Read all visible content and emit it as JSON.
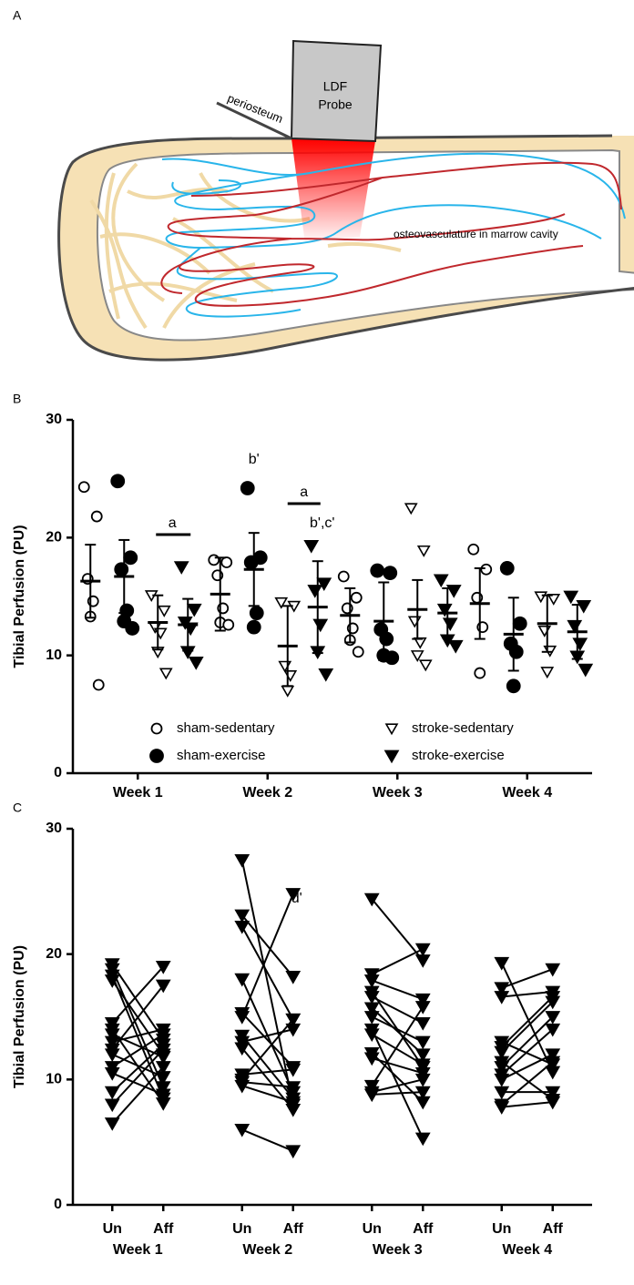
{
  "diagram": {
    "label": "A",
    "probe": [
      "LDF",
      "Probe"
    ],
    "periosteum": "periosteum",
    "caption": "osteovasculature in marrow cavity"
  },
  "chart_data": [
    {
      "label": "B",
      "type": "dot",
      "y_label": "Tibial Perfusion (PU)",
      "categories": [
        "Week 1",
        "Week 2",
        "Week 3",
        "Week 4"
      ],
      "ylim": [
        0,
        30
      ],
      "yticks": [
        0,
        10,
        20,
        30
      ],
      "legend_position": "bottom",
      "series": [
        {
          "name": "sham-sedentary",
          "marker": "circle-open",
          "color": "#000000",
          "values": [
            [
              24.3,
              21.8,
              16.5,
              14.6,
              13.3,
              7.5
            ],
            [
              18.1,
              17.9,
              16.8,
              14.0,
              12.8,
              12.6
            ],
            [
              16.7,
              14.9,
              14.0,
              12.3,
              11.3,
              10.3
            ],
            [
              19.0,
              17.3,
              14.9,
              12.4,
              8.5
            ]
          ],
          "mean": [
            16.3,
            15.2,
            13.4,
            14.4
          ],
          "sd": [
            3.1,
            3.1,
            2.3,
            3.0
          ]
        },
        {
          "name": "sham-exercise",
          "marker": "circle-filled",
          "color": "#000000",
          "values": [
            [
              24.8,
              18.3,
              17.3,
              13.8,
              12.9,
              12.3
            ],
            [
              24.2,
              18.3,
              17.9,
              13.6,
              12.4
            ],
            [
              17.2,
              17.0,
              12.2,
              11.4,
              10.0,
              9.8
            ],
            [
              17.4,
              12.7,
              11.0,
              10.3,
              7.4
            ]
          ],
          "mean": [
            16.7,
            17.3,
            12.9,
            11.8
          ],
          "sd": [
            3.1,
            3.1,
            3.3,
            3.1
          ]
        },
        {
          "name": "stroke-sedentary",
          "marker": "triangle-open",
          "color": "#000000",
          "values": [
            [
              15.1,
              13.8,
              12.4,
              11.9,
              10.3,
              8.5
            ],
            [
              14.5,
              14.2,
              9.1,
              8.3,
              7.0
            ],
            [
              22.5,
              18.9,
              12.9,
              11.1,
              10.0,
              9.2
            ],
            [
              15.0,
              14.8,
              12.1,
              10.4,
              8.6
            ]
          ],
          "mean": [
            12.8,
            10.8,
            13.9,
            12.7
          ],
          "sd": [
            2.3,
            3.4,
            2.5,
            2.4
          ]
        },
        {
          "name": "stroke-exercise",
          "marker": "triangle-filled",
          "color": "#000000",
          "values": [
            [
              17.5,
              13.9,
              12.8,
              12.3,
              10.3,
              9.4
            ],
            [
              19.3,
              16.1,
              15.5,
              12.6,
              10.3,
              8.4
            ],
            [
              16.4,
              15.5,
              13.9,
              12.7,
              11.3,
              10.8
            ],
            [
              15.0,
              14.2,
              12.5,
              11.0,
              9.9,
              8.8
            ]
          ],
          "mean": [
            12.6,
            14.1,
            13.6,
            12.0
          ],
          "sd": [
            2.2,
            3.9,
            2.1,
            2.3
          ]
        }
      ],
      "annotations": [
        "a",
        "b'",
        "a",
        "b',c'"
      ]
    },
    {
      "label": "C",
      "type": "paired",
      "y_label": "Tibial Perfusion (PU)",
      "categories": [
        "Week 1",
        "Week 2",
        "Week 3",
        "Week 4"
      ],
      "pair_labels": [
        "Un",
        "Aff"
      ],
      "ylim": [
        0,
        30
      ],
      "yticks": [
        0,
        10,
        20,
        30
      ],
      "marker": "triangle-filled",
      "color": "#000000",
      "pairs": [
        {
          "un": [
            19.2,
            18.8,
            18.3,
            17.9,
            14.5,
            14.0,
            13.6,
            13.0,
            12.4,
            12.0,
            11.0,
            10.5,
            9.0,
            8.0,
            6.5
          ],
          "aff": [
            13.2,
            9.4,
            8.5,
            12.0,
            19.0,
            8.1,
            11.8,
            14.0,
            17.5,
            10.2,
            13.6,
            8.8,
            12.8,
            12.4,
            11.0
          ]
        },
        {
          "un": [
            27.5,
            23.1,
            22.2,
            18.0,
            15.3,
            15.0,
            13.5,
            13.0,
            12.5,
            10.4,
            10.0,
            9.8,
            9.5,
            6.0
          ],
          "aff": [
            8.0,
            18.2,
            14.8,
            9.0,
            11.0,
            24.8,
            8.5,
            14.0,
            7.6,
            10.8,
            14.8,
            9.4,
            8.2,
            4.3
          ]
        },
        {
          "un": [
            24.4,
            18.4,
            17.9,
            17.0,
            16.6,
            15.7,
            15.0,
            14.0,
            13.6,
            12.1,
            11.7,
            9.5,
            9.0,
            8.8
          ],
          "aff": [
            19.5,
            20.4,
            16.4,
            11.0,
            14.5,
            12.0,
            13.0,
            5.3,
            11.2,
            8.2,
            10.5,
            15.8,
            10.0,
            9.0
          ]
        },
        {
          "un": [
            19.3,
            17.3,
            16.6,
            13.0,
            12.6,
            12.2,
            11.4,
            11.0,
            10.4,
            10.0,
            9.0,
            8.0,
            7.8
          ],
          "aff": [
            10.6,
            18.8,
            17.0,
            11.2,
            16.6,
            16.2,
            8.4,
            15.0,
            14.0,
            12.0,
            9.0,
            11.4,
            8.2
          ]
        }
      ],
      "annotations": [
        "d'"
      ]
    }
  ]
}
